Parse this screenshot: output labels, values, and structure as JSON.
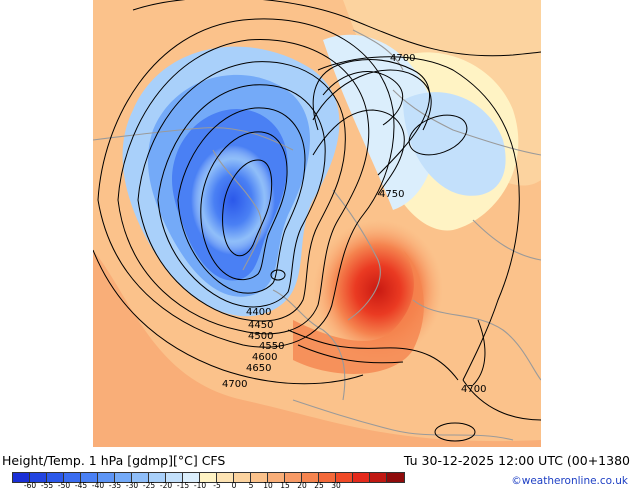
{
  "footer": {
    "title": "Height/Temp. 1 hPa [gdmp][°C] CFS",
    "valid_time": "Tu 30-12-2025 12:00 UTC (00+1380",
    "credit": "©weatheronline.co.uk"
  },
  "colorbar": {
    "colors": [
      "#1a2fd6",
      "#2244e0",
      "#2b58ea",
      "#3a6cf0",
      "#4a80f4",
      "#5d95f6",
      "#74aaf8",
      "#8fbef9",
      "#a9d0fa",
      "#c3e0fb",
      "#dbeefc",
      "#fff3c4",
      "#fde3b3",
      "#fcd39f",
      "#fbc28b",
      "#f9ae78",
      "#f79a66",
      "#f5844f",
      "#f3693a",
      "#f04a27",
      "#e42a1c",
      "#c01812",
      "#8f0b0b"
    ],
    "tick_labels": [
      "-60",
      "-55",
      "-50",
      "-45",
      "-40",
      "-35",
      "-30",
      "-25",
      "-20",
      "-15",
      "-10",
      "-5",
      "0",
      "5",
      "10",
      "15",
      "20",
      "25",
      "30"
    ]
  },
  "contours": {
    "labels": [
      {
        "text": "4700",
        "id": "contour-label-4700-north"
      },
      {
        "text": "4750",
        "id": "contour-label-4750"
      },
      {
        "text": "4400",
        "id": "contour-label-4400"
      },
      {
        "text": "4450",
        "id": "contour-label-4450"
      },
      {
        "text": "4500",
        "id": "contour-label-4500"
      },
      {
        "text": "4550",
        "id": "contour-label-4550"
      },
      {
        "text": "4600",
        "id": "contour-label-4600"
      },
      {
        "text": "4650",
        "id": "contour-label-4650"
      },
      {
        "text": "4700",
        "id": "contour-label-4700-south"
      },
      {
        "text": "4700",
        "id": "contour-label-4700-east"
      }
    ]
  }
}
